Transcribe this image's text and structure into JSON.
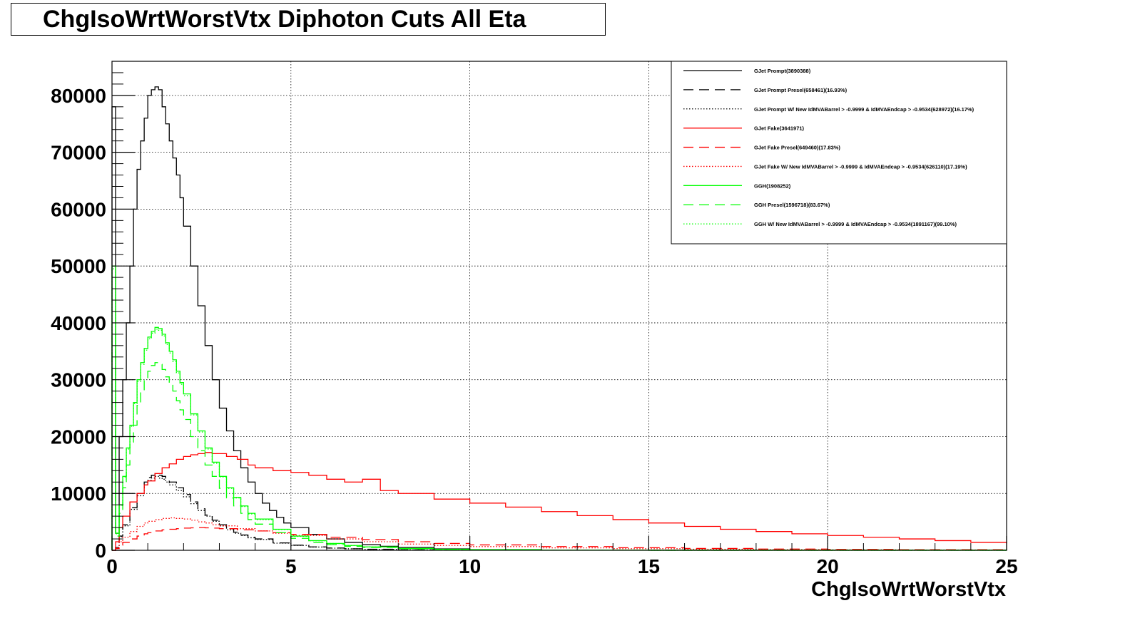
{
  "chart_data": {
    "type": "line",
    "title": "ChgIsoWrtWorstVtx Diphoton Cuts All Eta",
    "xlabel": "ChgIsoWrtWorstVtx",
    "ylabel": "",
    "xlim": [
      0,
      25
    ],
    "ylim": [
      0,
      86000
    ],
    "x_ticks": [
      "0",
      "5",
      "10",
      "15",
      "20",
      "25"
    ],
    "y_ticks": [
      "0",
      "10000",
      "20000",
      "30000",
      "40000",
      "50000",
      "60000",
      "70000",
      "80000"
    ],
    "grid": true,
    "legend_position": "top-right",
    "series": [
      {
        "name": "GJet Prompt(3890388)",
        "color": "#000000",
        "dash": "solid",
        "x": [
          0.0,
          0.1,
          0.2,
          0.3,
          0.4,
          0.5,
          0.6,
          0.7,
          0.8,
          0.9,
          1.0,
          1.1,
          1.2,
          1.3,
          1.4,
          1.5,
          1.6,
          1.7,
          1.8,
          1.9,
          2.0,
          2.2,
          2.4,
          2.6,
          2.8,
          3.0,
          3.2,
          3.4,
          3.6,
          3.8,
          4.0,
          4.2,
          4.4,
          4.6,
          4.8,
          5.0,
          5.5,
          6.0,
          6.5,
          7.0,
          7.5,
          8.0,
          9.0,
          10.0,
          12.0,
          14.0,
          25.0
        ],
        "y": [
          78000,
          3000,
          20000,
          30000,
          40000,
          50000,
          60000,
          67000,
          72000,
          76000,
          80000,
          81000,
          81500,
          81000,
          78000,
          75000,
          72000,
          69000,
          66000,
          62000,
          57000,
          50000,
          43000,
          36000,
          30000,
          25000,
          21000,
          17500,
          14500,
          12000,
          10000,
          8300,
          7000,
          5800,
          4800,
          4000,
          2800,
          2000,
          1400,
          1000,
          700,
          500,
          250,
          120,
          50,
          20,
          5
        ]
      },
      {
        "name": "GJet Prompt Presel(658461)(16.93%)",
        "color": "#000000",
        "dash": "long",
        "x": [
          0.0,
          0.1,
          0.2,
          0.3,
          0.5,
          0.7,
          0.9,
          1.0,
          1.1,
          1.2,
          1.3,
          1.4,
          1.5,
          1.6,
          1.8,
          2.0,
          2.2,
          2.4,
          2.6,
          2.8,
          3.0,
          3.2,
          3.4,
          3.6,
          3.8,
          4.0,
          4.5,
          5.0,
          5.5,
          6.0,
          6.5,
          7.0,
          8.0,
          10.0,
          25.0
        ],
        "y": [
          0,
          500,
          2500,
          4500,
          7500,
          10000,
          12000,
          12800,
          13200,
          13500,
          13200,
          13000,
          12500,
          12000,
          11000,
          9800,
          8500,
          7300,
          6200,
          5300,
          4500,
          3800,
          3200,
          2700,
          2300,
          2000,
          1300,
          900,
          600,
          400,
          270,
          180,
          80,
          30,
          2
        ]
      },
      {
        "name": "GJet Prompt W/ New IdMVABarrel > -0.9999 & IdMVAEndcap > -0.9534(628972)(16.17%)",
        "color": "#000000",
        "dash": "dot",
        "x": [
          0.0,
          0.1,
          0.2,
          0.3,
          0.5,
          0.7,
          0.9,
          1.0,
          1.1,
          1.2,
          1.3,
          1.4,
          1.5,
          1.6,
          1.8,
          2.0,
          2.2,
          2.4,
          2.6,
          2.8,
          3.0,
          3.2,
          3.4,
          3.6,
          3.8,
          4.0,
          4.5,
          5.0,
          5.5,
          6.0,
          6.5,
          7.0,
          8.0,
          10.0,
          25.0
        ],
        "y": [
          0,
          480,
          2400,
          4300,
          7200,
          9600,
          11500,
          12300,
          12700,
          13000,
          12700,
          12500,
          12000,
          11500,
          10500,
          9400,
          8200,
          7000,
          6000,
          5100,
          4300,
          3600,
          3000,
          2600,
          2200,
          1900,
          1250,
          860,
          570,
          380,
          260,
          170,
          75,
          28,
          2
        ]
      },
      {
        "name": "GJet Fake(3641971)",
        "color": "#ff0000",
        "dash": "solid",
        "x": [
          0.0,
          0.1,
          0.2,
          0.3,
          0.5,
          0.7,
          0.9,
          1.0,
          1.2,
          1.4,
          1.6,
          1.8,
          2.0,
          2.2,
          2.4,
          2.6,
          2.8,
          3.0,
          3.2,
          3.5,
          3.8,
          4.0,
          4.5,
          5.0,
          5.5,
          6.0,
          6.5,
          7.0,
          7.5,
          8.0,
          9.0,
          10.0,
          11.0,
          12.0,
          13.0,
          14.0,
          15.0,
          16.0,
          17.0,
          18.0,
          19.0,
          20.0,
          21.0,
          22.0,
          23.0,
          24.0,
          25.0
        ],
        "y": [
          0,
          1500,
          4000,
          6000,
          8500,
          10000,
          11500,
          12200,
          13500,
          14500,
          15200,
          16000,
          16500,
          16800,
          17000,
          17200,
          17000,
          17000,
          16500,
          16000,
          15000,
          14500,
          14000,
          13700,
          13200,
          12500,
          12000,
          12500,
          10500,
          10000,
          9000,
          8300,
          7600,
          6800,
          6100,
          5400,
          4800,
          4200,
          3700,
          3300,
          2900,
          2600,
          2300,
          2000,
          1700,
          1400,
          1200
        ]
      },
      {
        "name": "GJet Fake Presel(649460)(17.83%)",
        "color": "#ff0000",
        "dash": "long",
        "x": [
          0.0,
          0.1,
          0.2,
          0.3,
          0.5,
          0.7,
          0.9,
          1.0,
          1.2,
          1.4,
          1.6,
          1.8,
          2.0,
          2.2,
          2.4,
          2.6,
          2.8,
          3.0,
          3.5,
          4.0,
          4.5,
          5.0,
          6.0,
          7.0,
          8.0,
          9.0,
          10.0,
          12.0,
          14.0,
          16.0,
          18.0,
          20.0,
          22.0,
          25.0
        ],
        "y": [
          0,
          300,
          900,
          1400,
          2000,
          2500,
          2900,
          3100,
          3400,
          3600,
          3700,
          3800,
          3900,
          3950,
          4000,
          3950,
          3900,
          3800,
          3600,
          3400,
          3100,
          2800,
          2300,
          1900,
          1500,
          1200,
          950,
          650,
          450,
          320,
          220,
          150,
          100,
          60
        ]
      },
      {
        "name": "GJet Fake W/ New IdMVABarrel > -0.9999 & IdMVAEndcap > -0.9534(626110)(17.19%)",
        "color": "#ff0000",
        "dash": "dot",
        "x": [
          0.0,
          0.1,
          0.2,
          0.3,
          0.5,
          0.7,
          0.9,
          1.0,
          1.2,
          1.4,
          1.6,
          1.8,
          2.0,
          2.2,
          2.4,
          2.6,
          2.8,
          3.0,
          3.5,
          4.0,
          4.5,
          5.0,
          6.0,
          7.0,
          8.0,
          9.0,
          10.0,
          12.0,
          14.0,
          16.0,
          18.0,
          20.0,
          22.0,
          25.0
        ],
        "y": [
          0,
          500,
          1500,
          2300,
          3300,
          4200,
          4800,
          5100,
          5400,
          5600,
          5700,
          5600,
          5500,
          5300,
          5000,
          4800,
          4500,
          4300,
          3800,
          3400,
          3000,
          2600,
          2000,
          1500,
          1100,
          850,
          650,
          420,
          280,
          190,
          130,
          90,
          60,
          35
        ]
      },
      {
        "name": "GGH(1908252)",
        "color": "#00ff00",
        "dash": "solid",
        "x": [
          0.0,
          0.1,
          0.2,
          0.3,
          0.4,
          0.5,
          0.6,
          0.7,
          0.8,
          0.9,
          1.0,
          1.1,
          1.2,
          1.3,
          1.4,
          1.5,
          1.6,
          1.7,
          1.8,
          1.9,
          2.0,
          2.2,
          2.4,
          2.6,
          2.8,
          3.0,
          3.2,
          3.4,
          3.6,
          3.8,
          4.0,
          4.5,
          5.0,
          5.5,
          6.0,
          6.5,
          7.0,
          8.0,
          9.0,
          10.0,
          12.0,
          15.0,
          25.0
        ],
        "y": [
          50000,
          3000,
          8000,
          13000,
          18000,
          22000,
          26000,
          30000,
          33000,
          35500,
          37500,
          38500,
          39200,
          39000,
          38000,
          36500,
          35000,
          33500,
          31500,
          29500,
          27500,
          24000,
          21000,
          18000,
          15500,
          13000,
          11000,
          9300,
          7800,
          6500,
          5500,
          3700,
          2500,
          1700,
          1200,
          850,
          600,
          320,
          180,
          100,
          35,
          10,
          1
        ]
      },
      {
        "name": "GGH Presel(1596718)(83.67%)",
        "color": "#00ff00",
        "dash": "long",
        "x": [
          0.0,
          0.1,
          0.2,
          0.3,
          0.4,
          0.5,
          0.6,
          0.7,
          0.8,
          0.9,
          1.0,
          1.1,
          1.2,
          1.3,
          1.4,
          1.5,
          1.6,
          1.7,
          1.8,
          1.9,
          2.0,
          2.2,
          2.4,
          2.6,
          2.8,
          3.0,
          3.2,
          3.4,
          3.6,
          3.8,
          4.0,
          4.5,
          5.0,
          5.5,
          6.0,
          6.5,
          7.0,
          8.0,
          9.0,
          10.0,
          12.0,
          15.0,
          25.0
        ],
        "y": [
          38000,
          2500,
          6500,
          11000,
          15000,
          19000,
          22000,
          25500,
          28000,
          30000,
          31500,
          32500,
          33000,
          32700,
          31800,
          30500,
          29200,
          28000,
          26300,
          24700,
          23000,
          20000,
          17500,
          15000,
          13000,
          10900,
          9200,
          7800,
          6500,
          5400,
          4600,
          3100,
          2100,
          1400,
          1000,
          700,
          500,
          270,
          150,
          80,
          30,
          8,
          1
        ]
      },
      {
        "name": "GGH W/ New IdMVABarrel > -0.9999 & IdMVAEndcap > -0.9534(1891167)(99.10%)",
        "color": "#00ff00",
        "dash": "dot",
        "x": [
          0.0,
          0.1,
          0.2,
          0.3,
          0.4,
          0.5,
          0.6,
          0.7,
          0.8,
          0.9,
          1.0,
          1.1,
          1.2,
          1.3,
          1.4,
          1.5,
          1.6,
          1.7,
          1.8,
          1.9,
          2.0,
          2.2,
          2.4,
          2.6,
          2.8,
          3.0,
          3.2,
          3.4,
          3.6,
          3.8,
          4.0,
          4.5,
          5.0,
          5.5,
          6.0,
          6.5,
          7.0,
          8.0,
          9.0,
          10.0,
          12.0,
          15.0,
          25.0
        ],
        "y": [
          49500,
          2900,
          7900,
          12900,
          17800,
          21800,
          25800,
          29700,
          32700,
          35200,
          37200,
          38200,
          38900,
          38700,
          37700,
          36200,
          34700,
          33200,
          31200,
          29200,
          27200,
          23800,
          20800,
          17800,
          15300,
          12900,
          10900,
          9200,
          7700,
          6400,
          5400,
          3650,
          2450,
          1680,
          1180,
          840,
          590,
          315,
          175,
          98,
          34,
          9,
          1
        ]
      }
    ]
  }
}
